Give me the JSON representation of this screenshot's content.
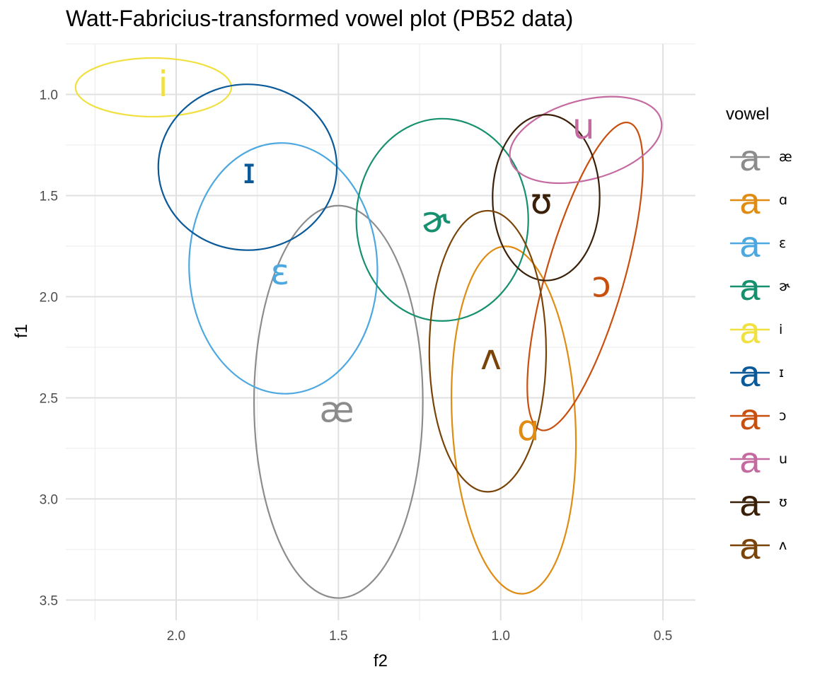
{
  "chart_data": {
    "type": "scatter",
    "title": "Watt-Fabricius-transformed vowel plot (PB52 data)",
    "xlabel": "f2",
    "ylabel": "f1",
    "x_reversed": true,
    "y_reversed": true,
    "xlim": [
      2.34,
      0.4
    ],
    "ylim": [
      0.75,
      3.6
    ],
    "x_ticks": [
      2.0,
      1.5,
      1.0,
      0.5
    ],
    "x_tick_labels": [
      "2.0",
      "1.5",
      "1.0",
      "0.5"
    ],
    "y_ticks": [
      1.0,
      1.5,
      2.0,
      2.5,
      3.0,
      3.5
    ],
    "y_tick_labels": [
      "1.0",
      "1.5",
      "2.0",
      "2.5",
      "3.0",
      "3.5"
    ],
    "grid": true,
    "legend_title": "vowel",
    "legend_position": "right",
    "legend_key_glyph": "a",
    "series": [
      {
        "name": "æ",
        "color": "#8c8c8c",
        "label_x": 1.505,
        "label_y": 2.56,
        "ellipse": {
          "cx": 1.5,
          "cy": 2.52,
          "rx": 0.26,
          "ry": 0.97,
          "angle": 0
        }
      },
      {
        "name": "ɑ",
        "color": "#e08c12",
        "label_x": 0.915,
        "label_y": 2.65,
        "ellipse": {
          "cx": 0.96,
          "cy": 2.61,
          "rx": 0.19,
          "ry": 0.86,
          "angle": -3
        }
      },
      {
        "name": "ɛ",
        "color": "#4ea8e0",
        "label_x": 1.68,
        "label_y": 1.88,
        "ellipse": {
          "cx": 1.67,
          "cy": 1.86,
          "rx": 0.29,
          "ry": 0.62,
          "angle": -2
        }
      },
      {
        "name": "ɚ",
        "color": "#16906e",
        "label_x": 1.2,
        "label_y": 1.62,
        "ellipse": {
          "cx": 1.18,
          "cy": 1.62,
          "rx": 0.265,
          "ry": 0.5,
          "angle": 0
        }
      },
      {
        "name": "i",
        "color": "#f0e040",
        "label_x": 2.04,
        "label_y": 0.95,
        "ellipse": {
          "cx": 2.07,
          "cy": 0.965,
          "rx": 0.24,
          "ry": 0.145,
          "angle": 0
        }
      },
      {
        "name": "ɪ",
        "color": "#0a5a9a",
        "label_x": 1.775,
        "label_y": 1.38,
        "ellipse": {
          "cx": 1.78,
          "cy": 1.36,
          "rx": 0.275,
          "ry": 0.41,
          "angle": 0
        }
      },
      {
        "name": "ɔ",
        "color": "#c94f0e",
        "label_x": 0.69,
        "label_y": 1.94,
        "ellipse": {
          "cx": 0.74,
          "cy": 1.9,
          "rx": 0.12,
          "ry": 0.79,
          "angle": 16
        }
      },
      {
        "name": "u",
        "color": "#c46aa0",
        "label_x": 0.745,
        "label_y": 1.16,
        "ellipse": {
          "cx": 0.738,
          "cy": 1.225,
          "rx": 0.24,
          "ry": 0.196,
          "angle": -15
        }
      },
      {
        "name": "ʊ",
        "color": "#3a2008",
        "label_x": 0.875,
        "label_y": 1.53,
        "ellipse": {
          "cx": 0.86,
          "cy": 1.51,
          "rx": 0.165,
          "ry": 0.41,
          "angle": 0
        }
      },
      {
        "name": "ʌ",
        "color": "#7a4408",
        "label_x": 1.03,
        "label_y": 2.3,
        "ellipse": {
          "cx": 1.04,
          "cy": 2.27,
          "rx": 0.18,
          "ry": 0.695,
          "angle": 0
        }
      }
    ]
  }
}
